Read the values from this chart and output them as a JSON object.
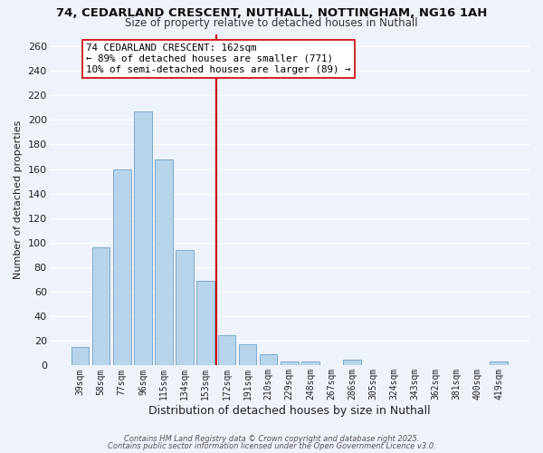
{
  "title": "74, CEDARLAND CRESCENT, NUTHALL, NOTTINGHAM, NG16 1AH",
  "subtitle": "Size of property relative to detached houses in Nuthall",
  "bar_color": "#b8d4ea",
  "bar_edge_color": "#7aaad0",
  "background_color": "#eef2fa",
  "plot_bg_color": "#eef2fa",
  "grid_color": "#ffffff",
  "categories": [
    "39sqm",
    "58sqm",
    "77sqm",
    "96sqm",
    "115sqm",
    "134sqm",
    "153sqm",
    "172sqm",
    "191sqm",
    "210sqm",
    "229sqm",
    "248sqm",
    "267sqm",
    "286sqm",
    "305sqm",
    "324sqm",
    "343sqm",
    "362sqm",
    "381sqm",
    "400sqm",
    "419sqm"
  ],
  "values": [
    15,
    96,
    160,
    207,
    168,
    94,
    69,
    25,
    17,
    9,
    3,
    3,
    0,
    5,
    0,
    0,
    0,
    0,
    0,
    0,
    3
  ],
  "ylim": [
    0,
    270
  ],
  "yticks": [
    0,
    20,
    40,
    60,
    80,
    100,
    120,
    140,
    160,
    180,
    200,
    220,
    240,
    260
  ],
  "ylabel": "Number of detached properties",
  "xlabel": "Distribution of detached houses by size in Nuthall",
  "vline_x": 6.5,
  "vline_color": "#cc0000",
  "annotation_title": "74 CEDARLAND CRESCENT: 162sqm",
  "annotation_line1": "← 89% of detached houses are smaller (771)",
  "annotation_line2": "10% of semi-detached houses are larger (89) →",
  "annotation_box_color": "#ffffff",
  "annotation_box_edge": "#cc0000",
  "footer1": "Contains HM Land Registry data © Crown copyright and database right 2025.",
  "footer2": "Contains public sector information licensed under the Open Government Licence v3.0."
}
